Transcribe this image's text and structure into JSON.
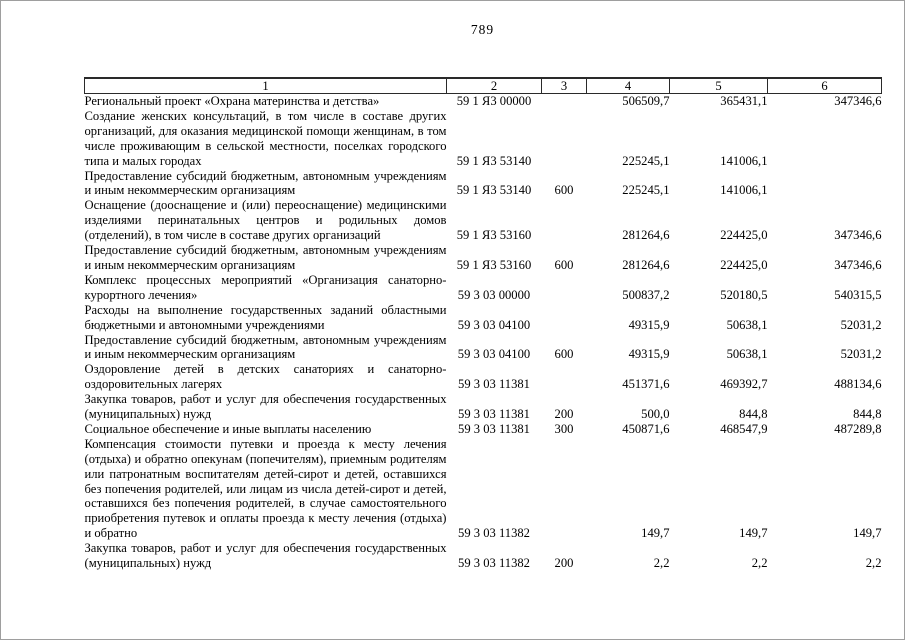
{
  "page_number": "789",
  "colors": {
    "text": "#000000",
    "table_border": "#2a2a2a",
    "page_edge": "#9e9e9e",
    "background": "#ffffff"
  },
  "table": {
    "columns": [
      "1",
      "2",
      "3",
      "4",
      "5",
      "6"
    ],
    "rows": [
      {
        "cells": [
          "Региональный проект «Охрана материнства и детства»",
          "59 1 Я3 00000",
          "",
          "506509,7",
          "365431,1",
          "347346,6"
        ]
      },
      {
        "cells": [
          "Создание женских консультаций, в том числе в составе других организаций, для оказания медицинской помощи женщинам, в том числе проживающим в сельской местности, поселках го­родского типа и малых городах",
          "59 1 Я3 53140",
          "",
          "225245,1",
          "141006,1",
          ""
        ]
      },
      {
        "cells": [
          "Предоставление субсидий бюджетным, автономным учрежде­ниям и иным некоммерческим организациям",
          "59 1 Я3 53140",
          "600",
          "225245,1",
          "141006,1",
          ""
        ]
      },
      {
        "cells": [
          "Оснащение (дооснащение и (или) переоснащение) медицин­скими изделиями перинатальных центров и родильных домов (отделений), в том числе в составе других организаций",
          "59 1 Я3 53160",
          "",
          "281264,6",
          "224425,0",
          "347346,6"
        ]
      },
      {
        "cells": [
          "Предоставление субсидий бюджетным, автономным учрежде­ниям и иным некоммерческим организациям",
          "59 1 Я3 53160",
          "600",
          "281264,6",
          "224425,0",
          "347346,6"
        ]
      },
      {
        "cells": [
          "Комплекс процессных мероприятий «Организация санаторно-курортного лечения»",
          "59 3 03 00000",
          "",
          "500837,2",
          "520180,5",
          "540315,5"
        ]
      },
      {
        "cells": [
          "Расходы на выполнение государственных заданий областными бюджетными и автономными учреждениями",
          "59 3 03 04100",
          "",
          "49315,9",
          "50638,1",
          "52031,2"
        ]
      },
      {
        "cells": [
          "Предоставление субсидий бюджетным, автономным учрежде­ниям и иным некоммерческим организациям",
          "59 3 03 04100",
          "600",
          "49315,9",
          "50638,1",
          "52031,2"
        ]
      },
      {
        "cells": [
          "Оздоровление детей в детских санаториях и санаторно-оздоровительных лагерях",
          "59 3 03 11381",
          "",
          "451371,6",
          "469392,7",
          "488134,6"
        ]
      },
      {
        "cells": [
          "Закупка товаров, работ и услуг для обеспечения государствен­ных (муниципальных) нужд",
          "59 3 03 11381",
          "200",
          "500,0",
          "844,8",
          "844,8"
        ]
      },
      {
        "cells": [
          "Социальное обеспечение и иные выплаты населению",
          "59 3 03 11381",
          "300",
          "450871,6",
          "468547,9",
          "487289,8"
        ]
      },
      {
        "cells": [
          "Компенсация стоимости путевки и проезда к месту лечения (отдыха) и обратно опекунам (попечителям), приемным роди­телям или патронатным воспитателям детей-сирот и детей, оставшихся без попечения родителей, или лицам из числа де­тей-сирот и детей, оставшихся без попечения родителей, в случае самостоятельного приобретения путевок и оплаты про­езда к месту лечения (отдыха) и обратно",
          "59 3 03 11382",
          "",
          "149,7",
          "149,7",
          "149,7"
        ]
      },
      {
        "cells": [
          "Закупка товаров, работ и услуг для обеспечения государствен­ных (муниципальных) нужд",
          "59 3 03 11382",
          "200",
          "2,2",
          "2,2",
          "2,2"
        ]
      }
    ]
  }
}
